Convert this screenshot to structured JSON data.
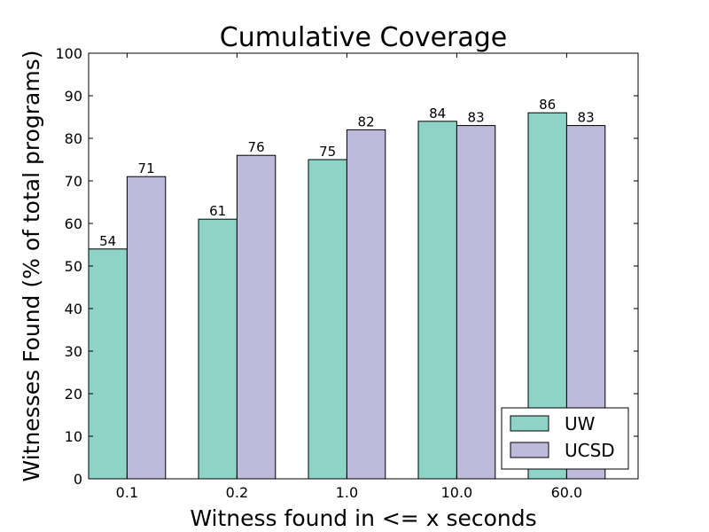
{
  "chart_data": {
    "type": "bar",
    "title": "Cumulative Coverage",
    "xlabel": "Witness found in <= x seconds",
    "ylabel": "Witnesses Found (% of total programs)",
    "categories": [
      "0.1",
      "0.2",
      "1.0",
      "10.0",
      "60.0"
    ],
    "series": [
      {
        "name": "UW",
        "color": "#8dd3c7",
        "values": [
          54,
          61,
          75,
          84,
          86
        ]
      },
      {
        "name": "UCSD",
        "color": "#bebada",
        "values": [
          71,
          76,
          82,
          83,
          83
        ]
      }
    ],
    "ylim": [
      0,
      100
    ],
    "yticks": [
      0,
      10,
      20,
      30,
      40,
      50,
      60,
      70,
      80,
      90,
      100
    ],
    "data_labels": true,
    "grid": false,
    "legend_position": "lower right"
  }
}
